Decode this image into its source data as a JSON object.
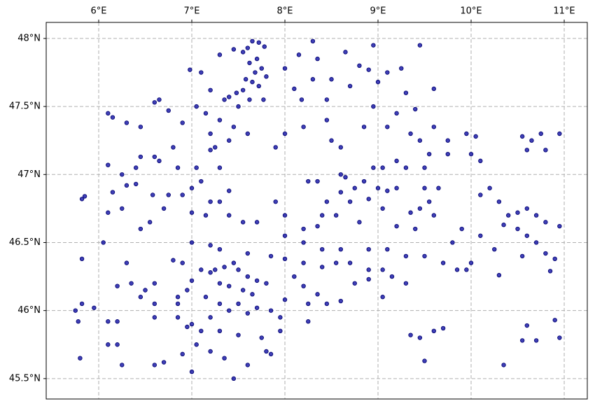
{
  "chart_data": {
    "type": "scatter",
    "color": "#1c1ca8",
    "edgecolor": "#00006e",
    "grid": true,
    "xlim": [
      5.436,
      11.248
    ],
    "ylim": [
      45.35,
      48.118
    ],
    "xticks": [
      {
        "value": 6,
        "label": "6°E"
      },
      {
        "value": 7,
        "label": "7°E"
      },
      {
        "value": 8,
        "label": "8°E"
      },
      {
        "value": 9,
        "label": "9°E"
      },
      {
        "value": 10,
        "label": "10°E"
      },
      {
        "value": 11,
        "label": "11°E"
      }
    ],
    "yticks": [
      {
        "value": 45.5,
        "label": "45.5°N"
      },
      {
        "value": 46,
        "label": "46°N"
      },
      {
        "value": 46.5,
        "label": "46.5°N"
      },
      {
        "value": 47,
        "label": "47°N"
      },
      {
        "value": 47.5,
        "label": "47.5°N"
      },
      {
        "value": 48,
        "label": "48°N"
      }
    ],
    "x": [
      7.65,
      7.72,
      7.78,
      7.6,
      7.55,
      7.7,
      7.62,
      7.75,
      7.68,
      7.8,
      7.58,
      7.65,
      7.72,
      7.55,
      7.48,
      7.4,
      7.35,
      7.62,
      7.77,
      7.5,
      7.45,
      7.3,
      7.1,
      6.98,
      7.2,
      7.05,
      7.15,
      7.3,
      7.45,
      7.2,
      7.4,
      7.6,
      7.2,
      7.25,
      6.9,
      6.65,
      6.6,
      6.75,
      6.45,
      6.3,
      6.1,
      6.15,
      6.45,
      6.6,
      6.65,
      6.4,
      6.1,
      6.25,
      6.3,
      6.4,
      6.58,
      6.75,
      6.9,
      7.0,
      7.05,
      6.8,
      6.85,
      7.1,
      7.3,
      7.4,
      7.3,
      7.2,
      5.82,
      5.85,
      6.15,
      6.1,
      6.25,
      6.45,
      6.55,
      6.7,
      7.0,
      7.15,
      7.4,
      7.55,
      7.7,
      8.0,
      8.15,
      8.1,
      8.18,
      8.3,
      8.35,
      8.3,
      8.5,
      8.45,
      8.65,
      8.7,
      8.8,
      8.9,
      8.95,
      9.0,
      9.1,
      9.25,
      9.45,
      9.3,
      9.2,
      9.4,
      9.6,
      8.95,
      8.85,
      8.6,
      8.5,
      8.45,
      8.2,
      8.0,
      7.9,
      9.1,
      9.35,
      9.45,
      9.55,
      9.3,
      9.2,
      9.5,
      9.6,
      9.75,
      9.95,
      10.05,
      10.0,
      10.1,
      9.75,
      8.95,
      9.05,
      10.55,
      10.6,
      10.65,
      10.75,
      10.8,
      10.95,
      10.2,
      10.1,
      10.3,
      10.4,
      10.5,
      10.6,
      10.7,
      10.8,
      10.95,
      10.35,
      10.5,
      10.6,
      10.7,
      10.8,
      10.9,
      10.25,
      10.1,
      9.9,
      9.8,
      9.7,
      9.85,
      9.95,
      10.0,
      10.3,
      10.55,
      10.85,
      8.25,
      8.35,
      8.6,
      8.65,
      8.75,
      8.85,
      9.0,
      9.1,
      9.2,
      9.5,
      9.65,
      9.55,
      9.45,
      9.35,
      9.6,
      8.6,
      8.45,
      8.7,
      8.9,
      9.05,
      8.4,
      8.55,
      8.35,
      8.2,
      8.0,
      7.9,
      8.8,
      9.2,
      9.4,
      7.1,
      7.2,
      7.25,
      7.35,
      7.45,
      7.5,
      7.6,
      7.7,
      7.8,
      7.3,
      7.4,
      7.55,
      7.65,
      7.0,
      6.95,
      6.85,
      6.9,
      6.8,
      6.6,
      6.5,
      6.35,
      6.2,
      6.45,
      6.6,
      6.85,
      7.15,
      7.3,
      7.4,
      7.5,
      7.6,
      7.7,
      7.85,
      7.95,
      7.2,
      7.0,
      6.95,
      6.85,
      7.1,
      7.3,
      7.5,
      7.75,
      7.95,
      6.6,
      6.6,
      6.7,
      6.9,
      7.05,
      7.2,
      7.35,
      7.45,
      7.6,
      7.8,
      7.85,
      7.0,
      6.25,
      6.2,
      6.1,
      6.1,
      6.2,
      5.75,
      5.82,
      5.78,
      5.95,
      5.8,
      6.05,
      5.82,
      6.3,
      7.0,
      7.2,
      7.3,
      7.6,
      7.85,
      8.0,
      8.2,
      8.4,
      8.55,
      8.7,
      8.9,
      9.05,
      8.1,
      8.2,
      8.35,
      8.45,
      8.6,
      8.75,
      8.9,
      9.15,
      9.3,
      9.05,
      8.0,
      8.25,
      8.0,
      8.2,
      8.4,
      8.6,
      8.9,
      9.1,
      9.3,
      9.5,
      8.25,
      9.6,
      9.35,
      9.45,
      9.5,
      9.7,
      10.35,
      10.55,
      10.6,
      10.9,
      10.95,
      10.7
    ],
    "values": [
      47.98,
      47.97,
      47.94,
      47.93,
      47.9,
      47.85,
      47.82,
      47.78,
      47.75,
      47.72,
      47.7,
      47.68,
      47.65,
      47.62,
      47.6,
      47.57,
      47.55,
      47.55,
      47.55,
      47.5,
      47.92,
      47.88,
      47.75,
      47.77,
      47.62,
      47.5,
      47.45,
      47.4,
      47.35,
      47.3,
      47.25,
      47.3,
      47.18,
      47.2,
      47.38,
      47.55,
      47.53,
      47.47,
      47.35,
      47.38,
      47.45,
      47.42,
      47.13,
      47.13,
      47.1,
      47.05,
      47.07,
      47.0,
      46.92,
      46.93,
      46.85,
      46.85,
      46.85,
      46.9,
      47.05,
      47.2,
      47.05,
      46.95,
      47.05,
      46.88,
      46.8,
      46.8,
      46.82,
      46.84,
      46.87,
      46.72,
      46.75,
      46.6,
      46.65,
      46.75,
      46.72,
      46.7,
      46.7,
      46.65,
      46.65,
      47.78,
      47.88,
      47.63,
      47.55,
      47.7,
      47.85,
      47.98,
      47.7,
      47.55,
      47.9,
      47.65,
      47.8,
      47.77,
      47.95,
      47.68,
      47.75,
      47.78,
      47.95,
      47.6,
      47.45,
      47.48,
      47.63,
      47.5,
      47.35,
      47.2,
      47.25,
      47.4,
      47.35,
      47.3,
      47.2,
      47.35,
      47.3,
      47.25,
      47.15,
      47.05,
      47.1,
      47.05,
      47.35,
      47.15,
      47.3,
      47.28,
      47.15,
      47.1,
      47.25,
      47.05,
      47.05,
      47.28,
      47.18,
      47.25,
      47.3,
      47.18,
      47.3,
      46.9,
      46.85,
      46.8,
      46.7,
      46.72,
      46.75,
      46.7,
      46.65,
      46.62,
      46.63,
      46.6,
      46.55,
      46.5,
      46.42,
      46.38,
      46.45,
      46.55,
      46.6,
      46.5,
      46.35,
      46.3,
      46.3,
      46.35,
      46.26,
      46.4,
      46.29,
      46.95,
      46.95,
      47.0,
      46.98,
      46.9,
      46.95,
      46.9,
      46.88,
      46.9,
      46.9,
      46.9,
      46.8,
      46.75,
      46.72,
      46.7,
      46.87,
      46.8,
      46.8,
      46.82,
      46.75,
      46.7,
      46.7,
      46.62,
      46.6,
      46.7,
      46.8,
      46.65,
      46.62,
      46.6,
      46.3,
      46.28,
      46.3,
      46.32,
      46.35,
      46.3,
      46.25,
      46.22,
      46.2,
      46.2,
      46.18,
      46.15,
      46.12,
      46.22,
      46.15,
      46.1,
      46.35,
      46.37,
      46.2,
      46.15,
      46.2,
      46.18,
      46.1,
      46.05,
      46.05,
      46.1,
      46.05,
      46.0,
      46.05,
      45.98,
      46.02,
      46.0,
      45.95,
      45.95,
      45.9,
      45.88,
      45.95,
      45.85,
      45.85,
      45.82,
      45.8,
      45.85,
      45.95,
      45.6,
      45.62,
      45.68,
      45.75,
      45.7,
      45.65,
      45.5,
      45.6,
      45.7,
      45.68,
      45.55,
      45.6,
      45.75,
      45.75,
      45.92,
      45.92,
      46.0,
      46.05,
      45.92,
      46.02,
      45.65,
      46.5,
      46.38,
      46.35,
      46.5,
      46.48,
      46.45,
      46.42,
      46.4,
      46.38,
      46.35,
      46.32,
      46.35,
      46.35,
      46.3,
      46.3,
      46.25,
      46.18,
      46.12,
      46.05,
      46.07,
      46.2,
      46.23,
      46.25,
      46.2,
      46.1,
      46.08,
      46.05,
      46.55,
      46.5,
      46.45,
      46.45,
      46.45,
      46.45,
      46.4,
      46.4,
      45.92,
      45.85,
      45.82,
      45.8,
      45.63,
      45.87,
      45.6,
      45.78,
      45.89,
      45.93,
      45.8,
      45.78
    ]
  }
}
